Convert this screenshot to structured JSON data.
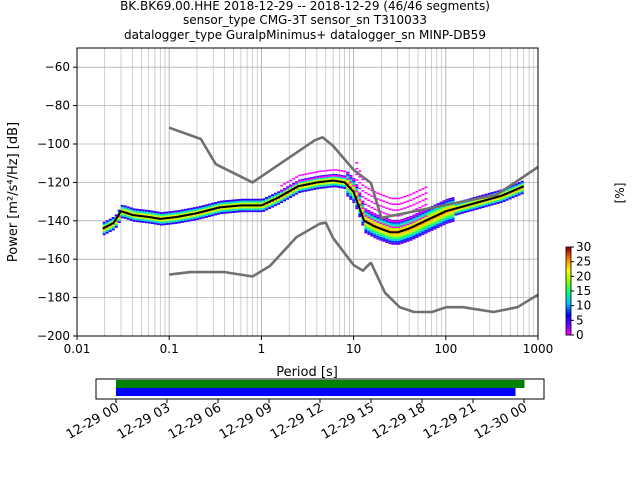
{
  "header": {
    "title_line1": "BK.BK69.00.HHE   2018-12-29 -- 2018-12-29  (46/46 segments)",
    "title_line2": "sensor_type CMG-3T sensor_sn T310033",
    "title_line3": "datalogger_type GuralpMinimus+ datalogger_sn MINP-DB59"
  },
  "colorbar": {
    "label": "[%]",
    "ticks": [
      "0",
      "5",
      "10",
      "15",
      "20",
      "25",
      "30"
    ],
    "range": [
      0,
      30
    ]
  },
  "colors": {
    "nlnm_nhnm": "#707070",
    "mean_line": "#000000",
    "timeline_bar1": "#008000",
    "timeline_bar2": "#0000ff"
  },
  "chart_data": [
    {
      "type": "line",
      "title": "BK.BK69.00.HHE   2018-12-29 -- 2018-12-29  (46/46 segments)",
      "xlabel": "Period [s]",
      "ylabel": "Power [m²/s⁴/Hz] [dB]",
      "xscale": "log",
      "xlim": [
        0.01,
        1000
      ],
      "ylim": [
        -200,
        -50
      ],
      "xtick_labels": [
        "0.01",
        "0.1",
        "1",
        "10",
        "100",
        "1000"
      ],
      "ytick_labels": [
        "−200",
        "−180",
        "−160",
        "−140",
        "−120",
        "−100",
        "−80",
        "−60"
      ],
      "ytick_values": [
        -200,
        -180,
        -160,
        -140,
        -120,
        -100,
        -80,
        -60
      ],
      "grid": true,
      "series": [
        {
          "x": [
            0.1,
            0.22,
            0.32,
            0.8,
            3.8,
            4.6,
            6.0,
            10,
            15.4,
            20,
            354.8,
            1000
          ],
          "y": [
            -91.5,
            -97.4,
            -110.5,
            -120.0,
            -98.0,
            -96.5,
            -101.0,
            -113.5,
            -120.3,
            -138.5,
            -126.5,
            -112
          ]
        },
        {
          "x": [
            0.1,
            0.17,
            0.4,
            0.8,
            1.24,
            2.4,
            4.3,
            5.0,
            6.0,
            10,
            12.6,
            14.9,
            15.5,
            21.9,
            31.6,
            45.2,
            70.8,
            101,
            154,
            328,
            600,
            1000
          ],
          "y": [
            -168.0,
            -166.7,
            -166.7,
            -169.0,
            -163.5,
            -148.5,
            -141.5,
            -141.0,
            -149.0,
            -163.0,
            -166.0,
            -162.4,
            -162.0,
            -177.5,
            -185.0,
            -187.5,
            -187.5,
            -185.0,
            -185.0,
            -187.5,
            -185.0,
            -178.5
          ]
        },
        {
          "x": [
            0.019,
            0.025,
            0.03,
            0.04,
            0.06,
            0.08,
            0.12,
            0.2,
            0.35,
            0.6,
            1.0,
            1.5,
            2.5,
            4.0,
            6.0,
            8.0,
            10,
            13,
            17,
            25,
            30,
            40,
            60,
            100,
            200,
            400,
            700
          ],
          "y": [
            -144,
            -141,
            -135,
            -137,
            -138,
            -139,
            -138,
            -136,
            -133,
            -132,
            -132,
            -128,
            -122,
            -120,
            -119,
            -120,
            -125,
            -140,
            -143,
            -146,
            -146,
            -144,
            -140,
            -135,
            -131,
            -127,
            -122
          ]
        }
      ]
    },
    {
      "type": "bar",
      "x_tick_labels": [
        "12-29 00",
        "12-29 03",
        "12-29 06",
        "12-29 09",
        "12-29 12",
        "12-29 15",
        "12-29 18",
        "12-29 21",
        "12-30 00"
      ],
      "series": [
        {
          "start_hour": 0.0,
          "end_hour": 24.5
        },
        {
          "start_hour": 0.0,
          "end_hour": 23.5
        }
      ]
    }
  ]
}
